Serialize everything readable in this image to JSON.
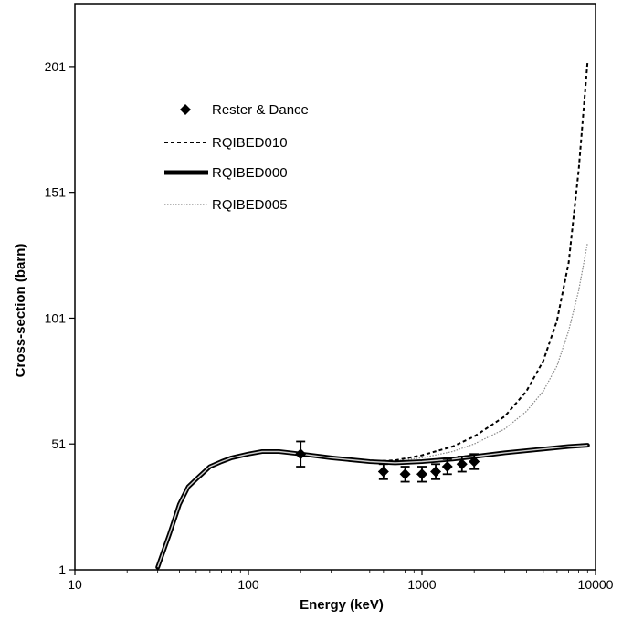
{
  "chart_data": {
    "type": "line",
    "xlabel": "Energy  (keV)",
    "ylabel": "Cross-section (barn)",
    "x_scale": "log",
    "xlim": [
      10,
      10000
    ],
    "ylim": [
      1,
      226
    ],
    "x_ticks": [
      10,
      100,
      1000,
      10000
    ],
    "x_tick_labels": [
      "10",
      "100",
      "1000",
      "10000"
    ],
    "y_ticks": [
      1,
      51,
      101,
      151,
      201
    ],
    "y_tick_labels": [
      "1",
      "51",
      "101",
      "151",
      "201"
    ],
    "grid": false,
    "legend_position": "top-left",
    "series": [
      {
        "name": "RQIBED000",
        "style": "thick-solid",
        "color": "#000000",
        "points": [
          [
            30,
            2
          ],
          [
            35,
            15
          ],
          [
            40,
            27
          ],
          [
            45,
            34
          ],
          [
            50,
            37
          ],
          [
            60,
            42
          ],
          [
            70,
            44
          ],
          [
            80,
            45.5
          ],
          [
            100,
            47
          ],
          [
            120,
            48
          ],
          [
            150,
            48
          ],
          [
            200,
            47
          ],
          [
            300,
            45.5
          ],
          [
            500,
            44
          ],
          [
            700,
            43.5
          ],
          [
            1000,
            44
          ],
          [
            1500,
            45
          ],
          [
            2000,
            46
          ],
          [
            3000,
            47.5
          ],
          [
            5000,
            49
          ],
          [
            7000,
            50
          ],
          [
            9000,
            50.5
          ]
        ]
      },
      {
        "name": "RQIBED010",
        "style": "dashed",
        "color": "#000000",
        "points": [
          [
            500,
            44
          ],
          [
            700,
            44.5
          ],
          [
            1000,
            46.5
          ],
          [
            1500,
            50
          ],
          [
            2000,
            54
          ],
          [
            3000,
            62
          ],
          [
            4000,
            72
          ],
          [
            5000,
            84
          ],
          [
            6000,
            100
          ],
          [
            7000,
            123
          ],
          [
            8000,
            160
          ],
          [
            9000,
            203
          ]
        ]
      },
      {
        "name": "RQIBED005",
        "style": "dotted-light",
        "color": "#888888",
        "points": [
          [
            500,
            44
          ],
          [
            700,
            44.3
          ],
          [
            1000,
            45.5
          ],
          [
            1500,
            48
          ],
          [
            2000,
            51
          ],
          [
            3000,
            57
          ],
          [
            4000,
            64
          ],
          [
            5000,
            72
          ],
          [
            6000,
            82
          ],
          [
            7000,
            96
          ],
          [
            8000,
            112
          ],
          [
            9000,
            131
          ]
        ]
      }
    ],
    "measurements": {
      "name": "Rester & Dance",
      "marker": "diamond",
      "points": [
        {
          "x": 200,
          "y": 47,
          "err": 5
        },
        {
          "x": 600,
          "y": 40,
          "err": 3
        },
        {
          "x": 800,
          "y": 39,
          "err": 3
        },
        {
          "x": 1000,
          "y": 39,
          "err": 3
        },
        {
          "x": 1200,
          "y": 40,
          "err": 3
        },
        {
          "x": 1400,
          "y": 42,
          "err": 3
        },
        {
          "x": 1700,
          "y": 43,
          "err": 3
        },
        {
          "x": 2000,
          "y": 44,
          "err": 3
        }
      ]
    }
  }
}
